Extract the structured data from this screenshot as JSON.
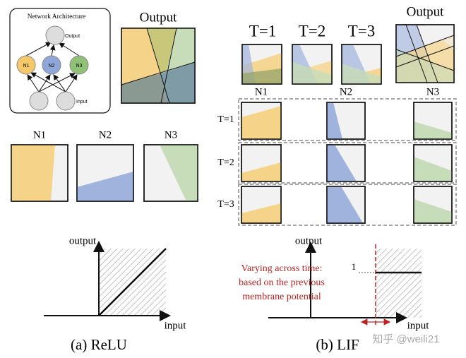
{
  "network": {
    "title": "Network Architecture",
    "output": "Output",
    "nodes": [
      "N1",
      "N2",
      "N3"
    ],
    "input": "Input"
  },
  "relu": {
    "output_title": "Output",
    "neurons": [
      "N1",
      "N2",
      "N3"
    ],
    "y_label": "output",
    "x_label": "input",
    "caption": "(a) ReLU"
  },
  "lif": {
    "timesteps": [
      "T=1",
      "T=2",
      "T=3"
    ],
    "output_title": "Output",
    "neurons": [
      "N1",
      "N2",
      "N3"
    ],
    "rows": [
      "T=1",
      "T=2",
      "T=3"
    ],
    "y_label": "output",
    "threshold_label": "1",
    "annotation": [
      "Varying across time:",
      "based on the previous",
      "membrane potential"
    ],
    "x_label": "input",
    "caption": "(b) LIF"
  },
  "watermark": "知乎 @weili21"
}
